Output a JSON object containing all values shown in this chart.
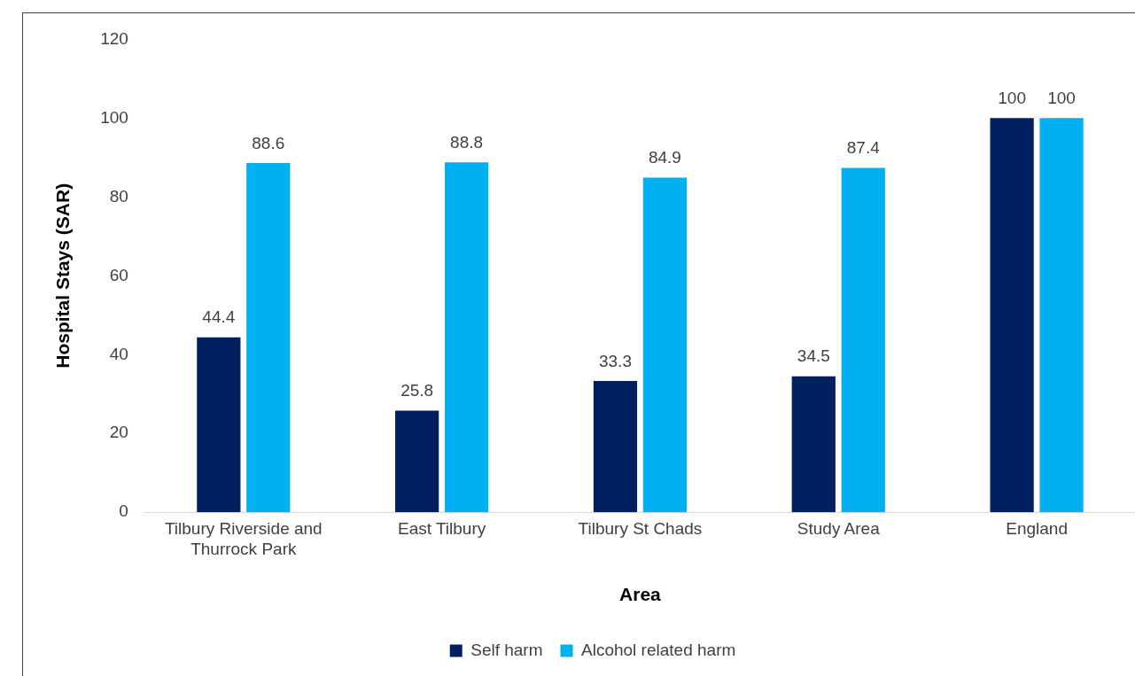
{
  "chart_data": {
    "type": "bar",
    "xlabel": "Area",
    "ylabel": "Hospital Stays (SAR)",
    "categories": [
      "Tilbury Riverside and Thurrock Park",
      "East Tilbury",
      "Tilbury St Chads",
      "Study Area",
      "England"
    ],
    "series": [
      {
        "name": "Self harm",
        "color": "#002060",
        "values": [
          44.4,
          25.8,
          33.3,
          34.5,
          100
        ]
      },
      {
        "name": "Alcohol related harm",
        "color": "#00b0f0",
        "values": [
          88.6,
          88.8,
          84.9,
          87.4,
          100
        ]
      }
    ],
    "ylim": [
      0,
      120
    ],
    "yticks": [
      0,
      20,
      40,
      60,
      80,
      100,
      120
    ],
    "grid": false,
    "legend": "bottom",
    "data_labels": true
  }
}
